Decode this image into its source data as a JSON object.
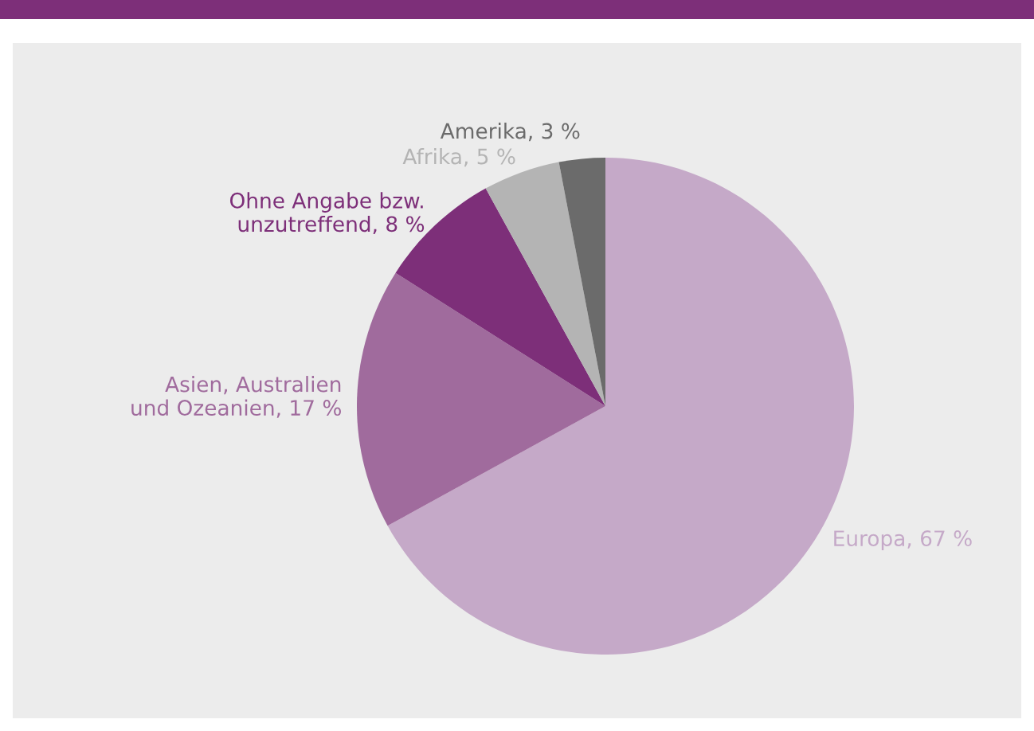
{
  "chart_data": {
    "type": "pie",
    "categories": [
      "Europa",
      "Asien, Australien\nund Ozeanien",
      "Ohne Angabe bzw.\nunzutreffend",
      "Afrika",
      "Amerika"
    ],
    "values": [
      67,
      17,
      8,
      5,
      3
    ],
    "value_labels": [
      "67 %",
      "17 %",
      "8 %",
      "5 %",
      "3 %"
    ],
    "colors": [
      "#c5a9c8",
      "#a06b9d",
      "#7d2f79",
      "#b4b4b4",
      "#6b6b6b"
    ],
    "legend": false
  }
}
